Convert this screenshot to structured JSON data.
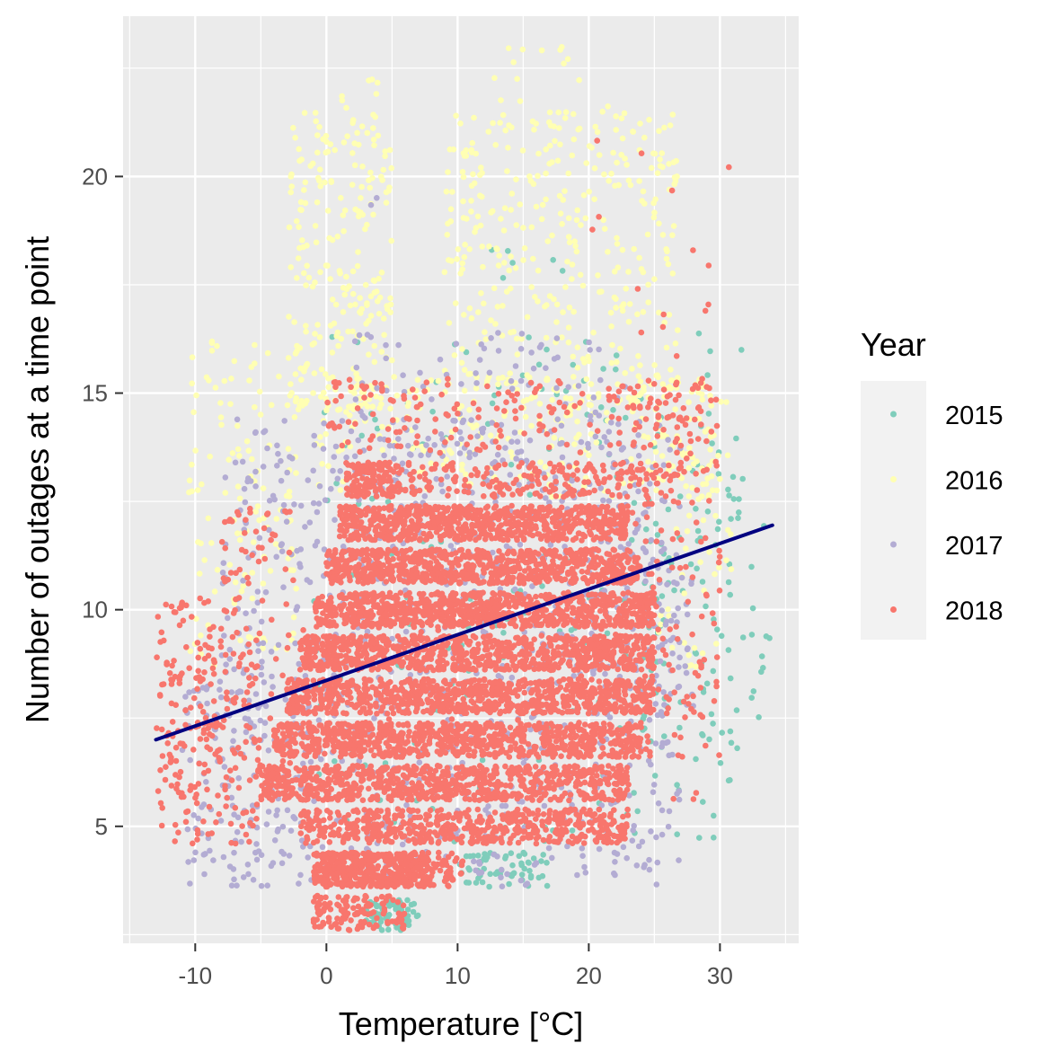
{
  "chart_data": {
    "type": "scatter",
    "title": "",
    "xlabel": "Temperature [°C]",
    "ylabel": "Number of outages at a time point",
    "xlim": [
      -15.5,
      36
    ],
    "ylim": [
      2.3,
      23.7
    ],
    "x_ticks": [
      -10,
      0,
      10,
      20,
      30
    ],
    "y_ticks": [
      5,
      10,
      15,
      20
    ],
    "grid": true,
    "legend": {
      "title": "Year",
      "placement": "right",
      "entries": [
        {
          "name": "2015",
          "color": "#7fcdbb"
        },
        {
          "name": "2016",
          "color": "#ffffb3"
        },
        {
          "name": "2017",
          "color": "#b3acd3"
        },
        {
          "name": "2018",
          "color": "#f8766d"
        }
      ]
    },
    "series": [
      {
        "name": "2015",
        "color": "#7fcdbb",
        "regions": [
          {
            "x": [
              3,
              7
            ],
            "y": [
              2.6,
              3.3
            ],
            "n": 70
          },
          {
            "x": [
              10,
              17
            ],
            "y": [
              3.6,
              4.4
            ],
            "n": 60
          },
          {
            "x": [
              -1,
              32
            ],
            "y": [
              4.6,
              16.4
            ],
            "n": 240
          },
          {
            "x": [
              24,
              34
            ],
            "y": [
              6.8,
              13.3
            ],
            "n": 70
          },
          {
            "x": [
              12,
              20
            ],
            "y": [
              17.6,
              18.4
            ],
            "n": 6
          }
        ]
      },
      {
        "name": "2016",
        "color": "#ffffb3",
        "regions": [
          {
            "x": [
              -10.5,
              -2
            ],
            "y": [
              8.7,
              16.4
            ],
            "n": 130
          },
          {
            "x": [
              -3,
              5
            ],
            "y": [
              14.6,
              21.5
            ],
            "n": 230
          },
          {
            "x": [
              1,
              4
            ],
            "y": [
              20.5,
              22.3
            ],
            "n": 12
          },
          {
            "x": [
              9,
              27
            ],
            "y": [
              14.6,
              21.5
            ],
            "n": 370
          },
          {
            "x": [
              12,
              23.5
            ],
            "y": [
              20.5,
              23
            ],
            "n": 20
          },
          {
            "x": [
              -1,
              30
            ],
            "y": [
              12.6,
              15.4
            ],
            "n": 240
          },
          {
            "x": [
              24,
              31
            ],
            "y": [
              8.6,
              15.4
            ],
            "n": 60
          }
        ]
      },
      {
        "name": "2017",
        "color": "#b3acd3",
        "regions": [
          {
            "x": [
              -11,
              -1
            ],
            "y": [
              3.6,
              8.4
            ],
            "n": 100
          },
          {
            "x": [
              -8,
              27
            ],
            "y": [
              3.6,
              14.4
            ],
            "n": 900
          },
          {
            "x": [
              2,
              23
            ],
            "y": [
              12.6,
              16.4
            ],
            "n": 120
          },
          {
            "x": [
              3,
              4
            ],
            "y": [
              19,
              20
            ],
            "n": 2
          },
          {
            "x": [
              20,
              28
            ],
            "y": [
              7.6,
              11.4
            ],
            "n": 70
          }
        ]
      },
      {
        "name": "2018",
        "color": "#f8766d",
        "regions": [
          {
            "x": [
              -1,
              6
            ],
            "y": [
              2.6,
              3.4
            ],
            "n": 130
          },
          {
            "x": [
              -1,
              8
            ],
            "y": [
              3.6,
              4.4
            ],
            "n": 330
          },
          {
            "x": [
              -0.5,
              10.5
            ],
            "y": [
              3.6,
              4.4
            ],
            "n": 180
          },
          {
            "x": [
              -2,
              23
            ],
            "y": [
              4.6,
              5.4
            ],
            "n": 560
          },
          {
            "x": [
              -5,
              23
            ],
            "y": [
              5.6,
              6.4
            ],
            "n": 760
          },
          {
            "x": [
              -4,
              24
            ],
            "y": [
              6.6,
              7.4
            ],
            "n": 840
          },
          {
            "x": [
              -3,
              25
            ],
            "y": [
              7.6,
              8.4
            ],
            "n": 860
          },
          {
            "x": [
              -2,
              25
            ],
            "y": [
              8.6,
              9.4
            ],
            "n": 860
          },
          {
            "x": [
              -1,
              25
            ],
            "y": [
              9.6,
              10.4
            ],
            "n": 840
          },
          {
            "x": [
              0,
              24
            ],
            "y": [
              10.6,
              11.4
            ],
            "n": 790
          },
          {
            "x": [
              1,
              23
            ],
            "y": [
              11.6,
              12.4
            ],
            "n": 730
          },
          {
            "x": [
              1.5,
              5
            ],
            "y": [
              12.6,
              13.4
            ],
            "n": 120
          },
          {
            "x": [
              5,
              27
            ],
            "y": [
              12.6,
              13.4
            ],
            "n": 220
          },
          {
            "x": [
              0,
              29
            ],
            "y": [
              13.6,
              15.4
            ],
            "n": 180
          },
          {
            "x": [
              -13,
              -5
            ],
            "y": [
              4.6,
              10.2
            ],
            "n": 220
          },
          {
            "x": [
              -8,
              -2
            ],
            "y": [
              10.6,
              12.4
            ],
            "n": 40
          },
          {
            "x": [
              22,
              30
            ],
            "y": [
              6.6,
              15.4
            ],
            "n": 150
          },
          {
            "x": [
              -13,
              29
            ],
            "y": [
              5.6,
              10.4
            ],
            "n": 160
          },
          {
            "x": [
              17,
              31
            ],
            "y": [
              15.6,
              21
            ],
            "n": 15
          }
        ]
      }
    ],
    "trend_line": {
      "color": "#000080",
      "points": [
        [
          -13,
          7.0
        ],
        [
          34,
          11.95
        ]
      ]
    }
  }
}
